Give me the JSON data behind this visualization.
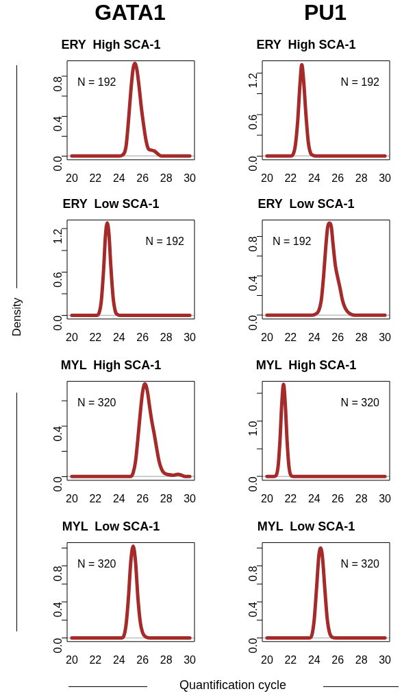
{
  "chart_data": [
    {
      "type": "line",
      "title": "ERY  High SCA-1",
      "annotations": [
        "GATA1",
        "N = 192"
      ],
      "xlim": [
        19.6,
        30.4
      ],
      "xticks": [
        20,
        22,
        24,
        26,
        28,
        30
      ],
      "ylim": [
        -0.038,
        0.956
      ],
      "yticks": [
        {
          "value": 0,
          "label": "0.0"
        },
        {
          "value": 0.2,
          "label": null
        },
        0.4,
        {
          "value": 0.6,
          "label": null
        },
        0.8
      ],
      "ref_lines": [
        {
          "axis": "y",
          "value": 0,
          "color": "#bebebe"
        }
      ],
      "series": [
        {
          "color": "#a52a2a",
          "x": [
            20,
            24,
            24.3,
            24.6,
            24.8,
            25,
            25.2,
            25.35,
            25.5,
            25.7,
            25.9,
            26.1,
            26.3,
            26.5,
            26.7,
            27,
            27.3,
            27.6,
            30
          ],
          "values": [
            0,
            0,
            0.01,
            0.1,
            0.35,
            0.65,
            0.88,
            0.93,
            0.88,
            0.7,
            0.48,
            0.3,
            0.15,
            0.07,
            0.06,
            0.05,
            0.02,
            0,
            0
          ]
        }
      ]
    },
    {
      "type": "line",
      "title": "ERY  High SCA-1",
      "annotations": [
        "PU1",
        "N = 192"
      ],
      "xlim": [
        19.6,
        30.4
      ],
      "xticks": [
        20,
        22,
        24,
        26,
        28,
        30
      ],
      "ylim": [
        -0.055,
        1.376
      ],
      "yticks": [
        {
          "value": 0,
          "label": "0.0"
        },
        {
          "value": 0.3,
          "label": null
        },
        0.6,
        {
          "value": 0.9,
          "label": null
        },
        1.2
      ],
      "ref_lines": [
        {
          "axis": "y",
          "value": 0,
          "color": "#bebebe"
        }
      ],
      "series": [
        {
          "color": "#a52a2a",
          "x": [
            20,
            22,
            22.2,
            22.4,
            22.6,
            22.8,
            22.95,
            23.1,
            23.3,
            23.5,
            23.7,
            23.9,
            24.1,
            30
          ],
          "values": [
            0,
            0,
            0.02,
            0.15,
            0.5,
            1.05,
            1.32,
            1.1,
            0.6,
            0.2,
            0.04,
            0.01,
            0,
            0
          ]
        }
      ]
    },
    {
      "type": "line",
      "title": "ERY  Low SCA-1",
      "ylabel": "Density",
      "annotations": [
        "N = 192"
      ],
      "xlim": [
        19.6,
        30.4
      ],
      "xticks": [
        20,
        22,
        24,
        26,
        28,
        30
      ],
      "ylim": [
        -0.05,
        1.32
      ],
      "yticks": [
        {
          "value": 0,
          "label": "0.0"
        },
        {
          "value": 0.3,
          "label": null
        },
        0.6,
        {
          "value": 0.9,
          "label": null
        },
        1.2
      ],
      "ref_lines": [
        {
          "axis": "y",
          "value": 0,
          "color": "#bebebe"
        }
      ],
      "series": [
        {
          "color": "#a52a2a",
          "x": [
            20,
            22.1,
            22.3,
            22.5,
            22.7,
            22.85,
            23,
            23.15,
            23.3,
            23.5,
            23.7,
            23.9,
            24.1,
            30
          ],
          "values": [
            0,
            0,
            0.03,
            0.2,
            0.65,
            1.1,
            1.28,
            1.12,
            0.7,
            0.25,
            0.05,
            0.01,
            0,
            0
          ]
        }
      ]
    },
    {
      "type": "line",
      "title": "ERY  Low SCA-1",
      "annotations": [
        "N = 192"
      ],
      "xlim": [
        19.6,
        30.4
      ],
      "xticks": [
        20,
        22,
        24,
        26,
        28,
        30
      ],
      "ylim": [
        -0.039,
        0.966
      ],
      "yticks": [
        {
          "value": 0,
          "label": "0.0"
        },
        {
          "value": 0.2,
          "label": null
        },
        0.4,
        {
          "value": 0.6,
          "label": null
        },
        0.8
      ],
      "ref_lines": [
        {
          "axis": "y",
          "value": 0,
          "color": "#bebebe"
        }
      ],
      "series": [
        {
          "color": "#a52a2a",
          "x": [
            20,
            23.8,
            24.1,
            24.4,
            24.6,
            24.8,
            25,
            25.15,
            25.3,
            25.45,
            25.6,
            25.8,
            26,
            26.2,
            26.4,
            26.6,
            26.8,
            27.1,
            27.4,
            30
          ],
          "values": [
            0,
            0,
            0.01,
            0.05,
            0.15,
            0.4,
            0.72,
            0.9,
            0.935,
            0.9,
            0.72,
            0.5,
            0.38,
            0.27,
            0.15,
            0.08,
            0.04,
            0.01,
            0,
            0
          ]
        }
      ]
    },
    {
      "type": "line",
      "title": "MYL  High SCA-1",
      "annotations": [
        "N = 320"
      ],
      "xlim": [
        19.6,
        30.4
      ],
      "xticks": [
        20,
        22,
        24,
        26,
        28,
        30
      ],
      "ylim": [
        -0.03,
        0.755
      ],
      "yticks": [
        {
          "value": 0,
          "label": "0.0"
        },
        {
          "value": 0.2,
          "label": null
        },
        0.4,
        {
          "value": 0.6,
          "label": null
        }
      ],
      "ref_lines": [
        {
          "axis": "y",
          "value": 0,
          "color": "#bebebe"
        }
      ],
      "series": [
        {
          "color": "#a52a2a",
          "x": [
            20,
            25,
            25.2,
            25.4,
            25.6,
            25.8,
            26,
            26.2,
            26.4,
            26.6,
            26.8,
            27,
            27.2,
            27.4,
            27.6,
            27.8,
            28.2,
            28.6,
            29,
            29.3,
            29.6,
            30
          ],
          "values": [
            0,
            0,
            0.03,
            0.12,
            0.3,
            0.5,
            0.67,
            0.735,
            0.68,
            0.55,
            0.43,
            0.33,
            0.22,
            0.12,
            0.06,
            0.03,
            0.015,
            0.01,
            0.018,
            0.01,
            0,
            0
          ]
        }
      ]
    },
    {
      "type": "line",
      "title": "MYL  High SCA-1",
      "annotations": [
        "N = 320"
      ],
      "xlim": [
        19.6,
        30.4
      ],
      "xticks": [
        20,
        22,
        24,
        26,
        28,
        30
      ],
      "ylim": [
        -0.069,
        1.714
      ],
      "yticks": [
        {
          "value": 0,
          "label": "0.0"
        },
        {
          "value": 0.5,
          "label": null
        },
        {
          "value": 1,
          "label": "1.0"
        },
        {
          "value": 1.5,
          "label": null
        }
      ],
      "ref_lines": [
        {
          "axis": "y",
          "value": 0,
          "color": "#bebebe"
        }
      ],
      "series": [
        {
          "color": "#a52a2a",
          "x": [
            20,
            20.6,
            20.8,
            20.95,
            21.1,
            21.25,
            21.4,
            21.55,
            21.7,
            21.85,
            22,
            22.2,
            30
          ],
          "values": [
            0,
            0,
            0.03,
            0.2,
            0.65,
            1.3,
            1.66,
            1.3,
            0.65,
            0.2,
            0.03,
            0,
            0
          ]
        }
      ]
    },
    {
      "type": "line",
      "title": "MYL  Low SCA-1",
      "xlabel": "Quantification cycle",
      "annotations": [
        "N = 320"
      ],
      "xlim": [
        19.6,
        30.4
      ],
      "xticks": [
        20,
        22,
        24,
        26,
        28,
        30
      ],
      "ylim": [
        -0.04,
        1.06
      ],
      "yticks": [
        {
          "value": 0,
          "label": "0.0"
        },
        {
          "value": 0.2,
          "label": null
        },
        0.4,
        {
          "value": 0.6,
          "label": null
        },
        0.8,
        {
          "value": 1,
          "label": null
        }
      ],
      "ref_lines": [
        {
          "axis": "y",
          "value": 0,
          "color": "#bebebe"
        }
      ],
      "series": [
        {
          "color": "#a52a2a",
          "x": [
            20,
            24.2,
            24.4,
            24.6,
            24.8,
            25,
            25.2,
            25.4,
            25.6,
            25.8,
            26,
            26.3,
            26.6,
            30
          ],
          "values": [
            0,
            0,
            0.02,
            0.15,
            0.45,
            0.85,
            1.02,
            0.85,
            0.45,
            0.18,
            0.06,
            0.01,
            0,
            0
          ]
        }
      ]
    },
    {
      "type": "line",
      "title": "MYL  Low SCA-1",
      "annotations": [
        "N = 320"
      ],
      "xlim": [
        19.6,
        30.4
      ],
      "xticks": [
        20,
        22,
        24,
        26,
        28,
        30
      ],
      "ylim": [
        -0.04,
        1.06
      ],
      "yticks": [
        {
          "value": 0,
          "label": "0.0"
        },
        {
          "value": 0.2,
          "label": null
        },
        0.4,
        {
          "value": 0.6,
          "label": null
        },
        0.8,
        {
          "value": 1,
          "label": null
        }
      ],
      "ref_lines": [
        {
          "axis": "y",
          "value": 0,
          "color": "#bebebe"
        }
      ],
      "series": [
        {
          "color": "#a52a2a",
          "x": [
            20,
            23.6,
            23.8,
            24,
            24.2,
            24.4,
            24.55,
            24.7,
            24.9,
            25.1,
            25.3,
            25.5,
            25.8,
            30
          ],
          "values": [
            0,
            0,
            0.03,
            0.2,
            0.55,
            0.92,
            1,
            0.9,
            0.55,
            0.22,
            0.06,
            0.01,
            0,
            0
          ]
        }
      ]
    }
  ]
}
